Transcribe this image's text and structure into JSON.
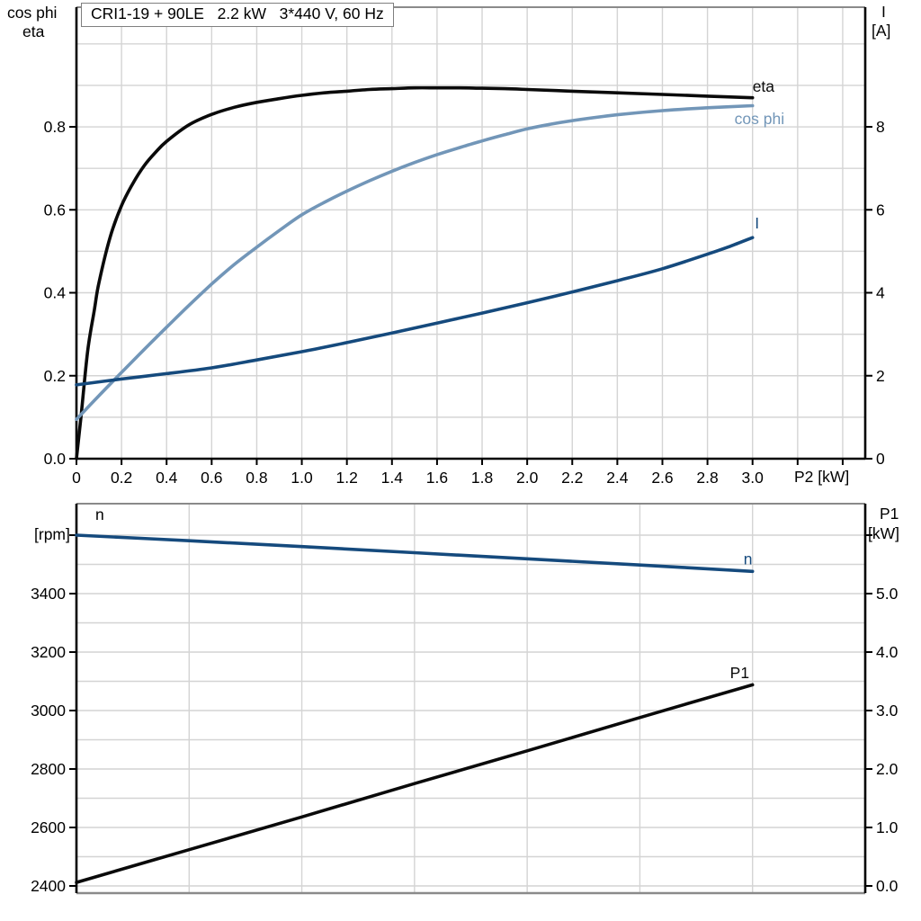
{
  "title": "CRI1-19 + 90LE   2.2 kW   3*440 V, 60 Hz",
  "labels": {
    "top_left": [
      "cos phi",
      "eta"
    ],
    "top_right": [
      "I",
      "[A]"
    ],
    "bottom_left": [
      "n",
      "[rpm]"
    ],
    "bottom_right": [
      "P1",
      "[kW]"
    ],
    "x_axis": "P2 [kW]"
  },
  "colors": {
    "black": "#0a0a0a",
    "light_blue": "#7296b8",
    "dark_blue": "#154a7d",
    "grid": "#d4d4d4",
    "frame": "#8a8a8a",
    "axis": "#000000"
  },
  "chart_data": [
    {
      "type": "line",
      "title": "CRI1-19 + 90LE 2.2 kW 3*440 V, 60 Hz",
      "x_axis": {
        "label": "P2 [kW]",
        "range": [
          0,
          3.5
        ],
        "ticks": [
          {
            "v": 0,
            "label": "0"
          },
          {
            "v": 0.2,
            "label": "0.2"
          },
          {
            "v": 0.4,
            "label": "0.4"
          },
          {
            "v": 0.6,
            "label": "0.6"
          },
          {
            "v": 0.8,
            "label": "0.8"
          },
          {
            "v": 1.0,
            "label": "1.0"
          },
          {
            "v": 1.2,
            "label": "1.2"
          },
          {
            "v": 1.4,
            "label": "1.4"
          },
          {
            "v": 1.6,
            "label": "1.6"
          },
          {
            "v": 1.8,
            "label": "1.8"
          },
          {
            "v": 2.0,
            "label": "2.0"
          },
          {
            "v": 2.2,
            "label": "2.2"
          },
          {
            "v": 2.4,
            "label": "2.4"
          },
          {
            "v": 2.6,
            "label": "2.6"
          },
          {
            "v": 2.8,
            "label": "2.8"
          },
          {
            "v": 3.0,
            "label": "3.0"
          },
          {
            "v": 3.2,
            "label": ""
          },
          {
            "v": 3.4,
            "label": ""
          }
        ]
      },
      "left_axis": {
        "label": "cos phi / eta",
        "range": [
          0,
          1.0884
        ],
        "ticks": [
          {
            "v": 0,
            "label": "0.0"
          },
          {
            "v": 0.2,
            "label": "0.2"
          },
          {
            "v": 0.4,
            "label": "0.4"
          },
          {
            "v": 0.6,
            "label": "0.6"
          },
          {
            "v": 0.8,
            "label": "0.8"
          }
        ]
      },
      "right_axis": {
        "label": "I [A]",
        "range": [
          0,
          10.884
        ],
        "ticks": [
          {
            "v": 0,
            "label": "0"
          },
          {
            "v": 2,
            "label": "2"
          },
          {
            "v": 4,
            "label": "4"
          },
          {
            "v": 6,
            "label": "6"
          },
          {
            "v": 8,
            "label": "8"
          }
        ]
      },
      "grid": {
        "x": [
          0.2,
          0.4,
          0.6,
          0.8,
          1.0,
          1.2,
          1.4,
          1.6,
          1.8,
          2.0,
          2.2,
          2.4,
          2.6,
          2.8,
          3.0,
          3.2,
          3.4
        ],
        "y": [
          0.1,
          0.2,
          0.3,
          0.4,
          0.5,
          0.6,
          0.7,
          0.8,
          0.9,
          1.0
        ]
      },
      "series": [
        {
          "name": "eta",
          "axis": "left",
          "color_key": "black",
          "label": {
            "x": 3.0,
            "y": 0.885
          },
          "points": [
            [
              0,
              0
            ],
            [
              0.02,
              0.1
            ],
            [
              0.05,
              0.26
            ],
            [
              0.08,
              0.36
            ],
            [
              0.1,
              0.425
            ],
            [
              0.15,
              0.535
            ],
            [
              0.2,
              0.61
            ],
            [
              0.25,
              0.663
            ],
            [
              0.3,
              0.706
            ],
            [
              0.35,
              0.738
            ],
            [
              0.4,
              0.765
            ],
            [
              0.5,
              0.805
            ],
            [
              0.6,
              0.83
            ],
            [
              0.7,
              0.847
            ],
            [
              0.8,
              0.859
            ],
            [
              0.9,
              0.868
            ],
            [
              1.0,
              0.876
            ],
            [
              1.1,
              0.882
            ],
            [
              1.2,
              0.886
            ],
            [
              1.3,
              0.89
            ],
            [
              1.4,
              0.892
            ],
            [
              1.5,
              0.894
            ],
            [
              1.6,
              0.894
            ],
            [
              1.7,
              0.894
            ],
            [
              1.8,
              0.893
            ],
            [
              1.9,
              0.892
            ],
            [
              2.0,
              0.89
            ],
            [
              2.2,
              0.886
            ],
            [
              2.4,
              0.882
            ],
            [
              2.6,
              0.878
            ],
            [
              2.8,
              0.874
            ],
            [
              3.0,
              0.87
            ]
          ]
        },
        {
          "name": "cos phi",
          "axis": "left",
          "color_key": "light_blue",
          "label": {
            "x": 2.92,
            "y": 0.807
          },
          "points": [
            [
              0,
              0.095
            ],
            [
              0.1,
              0.152
            ],
            [
              0.2,
              0.208
            ],
            [
              0.3,
              0.263
            ],
            [
              0.4,
              0.317
            ],
            [
              0.5,
              0.37
            ],
            [
              0.6,
              0.421
            ],
            [
              0.7,
              0.468
            ],
            [
              0.8,
              0.51
            ],
            [
              0.9,
              0.55
            ],
            [
              1.0,
              0.588
            ],
            [
              1.1,
              0.618
            ],
            [
              1.2,
              0.645
            ],
            [
              1.3,
              0.67
            ],
            [
              1.4,
              0.693
            ],
            [
              1.5,
              0.714
            ],
            [
              1.6,
              0.733
            ],
            [
              1.7,
              0.75
            ],
            [
              1.8,
              0.766
            ],
            [
              1.9,
              0.781
            ],
            [
              2.0,
              0.795
            ],
            [
              2.1,
              0.806
            ],
            [
              2.2,
              0.815
            ],
            [
              2.4,
              0.829
            ],
            [
              2.6,
              0.839
            ],
            [
              2.8,
              0.846
            ],
            [
              3.0,
              0.851
            ]
          ]
        },
        {
          "name": "I",
          "axis": "right",
          "color_key": "dark_blue",
          "label": {
            "x": 3.01,
            "y": 5.55
          },
          "points": [
            [
              0,
              1.78
            ],
            [
              0.2,
              1.92
            ],
            [
              0.4,
              2.05
            ],
            [
              0.6,
              2.19
            ],
            [
              0.8,
              2.38
            ],
            [
              1.0,
              2.58
            ],
            [
              1.2,
              2.8
            ],
            [
              1.4,
              3.03
            ],
            [
              1.6,
              3.27
            ],
            [
              1.8,
              3.51
            ],
            [
              2.0,
              3.76
            ],
            [
              2.2,
              4.02
            ],
            [
              2.4,
              4.29
            ],
            [
              2.6,
              4.58
            ],
            [
              2.8,
              4.93
            ],
            [
              2.9,
              5.12
            ],
            [
              3.0,
              5.33
            ]
          ]
        }
      ]
    },
    {
      "type": "line",
      "title": "speed and input power vs P2",
      "x_axis": {
        "label": "",
        "range": [
          0,
          3.5
        ],
        "ticks": []
      },
      "left_axis": {
        "label": "n [rpm]",
        "range": [
          2375.4,
          3707.7
        ],
        "ticks": [
          {
            "v": 2400,
            "label": "2400"
          },
          {
            "v": 2600,
            "label": "2600"
          },
          {
            "v": 2800,
            "label": "2800"
          },
          {
            "v": 3000,
            "label": "3000"
          },
          {
            "v": 3200,
            "label": "3200"
          },
          {
            "v": 3400,
            "label": "3400"
          },
          {
            "v": 3600,
            "label": ""
          }
        ]
      },
      "right_axis": {
        "label": "P1 [kW]",
        "range": [
          -0.123,
          6.538
        ],
        "ticks": [
          {
            "v": 0,
            "label": "0.0"
          },
          {
            "v": 1,
            "label": "1.0"
          },
          {
            "v": 2,
            "label": "2.0"
          },
          {
            "v": 3,
            "label": "3.0"
          },
          {
            "v": 4,
            "label": "4.0"
          },
          {
            "v": 5,
            "label": "5.0"
          },
          {
            "v": 6,
            "label": ""
          }
        ]
      },
      "grid": {
        "x": [
          0.5,
          1.0,
          1.5,
          2.0,
          2.5,
          3.0
        ],
        "y": [
          2400,
          2500,
          2600,
          2700,
          2800,
          2900,
          3000,
          3100,
          3200,
          3300,
          3400,
          3500,
          3600
        ]
      },
      "series": [
        {
          "name": "n",
          "axis": "left",
          "color_key": "dark_blue",
          "label": {
            "x": 2.96,
            "y": 3500
          },
          "points": [
            [
              0,
              3600
            ],
            [
              0.5,
              3581
            ],
            [
              1.0,
              3561
            ],
            [
              1.5,
              3540
            ],
            [
              2.0,
              3519
            ],
            [
              2.5,
              3498
            ],
            [
              3.0,
              3476
            ]
          ]
        },
        {
          "name": "P1",
          "axis": "right",
          "color_key": "black",
          "label": {
            "x": 2.9,
            "y": 3.55
          },
          "points": [
            [
              0,
              0.06
            ],
            [
              0.5,
              0.62
            ],
            [
              1.0,
              1.18
            ],
            [
              1.5,
              1.75
            ],
            [
              2.0,
              2.31
            ],
            [
              2.5,
              2.88
            ],
            [
              3.0,
              3.44
            ]
          ]
        }
      ]
    }
  ]
}
